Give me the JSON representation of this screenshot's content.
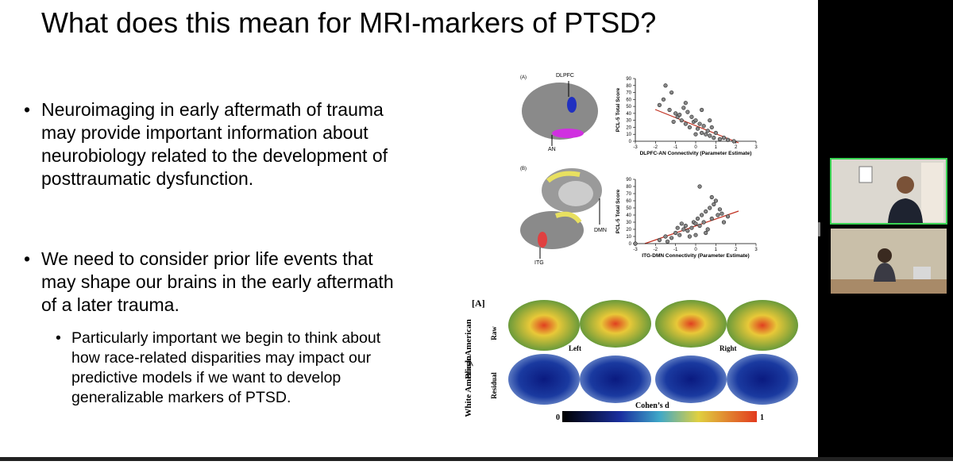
{
  "slide": {
    "title": "What does this mean for MRI-markers of PTSD?",
    "bullets": [
      {
        "lines": [
          "Neuroimaging in early aftermath of trauma",
          "may provide important information about",
          "neurobiology related to the development of",
          "posttraumatic dysfunction."
        ]
      },
      {
        "lines": [
          "We need to consider prior life events that",
          "may shape our brains in the early aftermath",
          "of a later trauma."
        ]
      }
    ],
    "sub_bullet": {
      "lines": [
        "Particularly important we begin to think about",
        "how race-related disparities may impact our",
        "predictive models if we want to develop",
        "generalizable markers of PTSD."
      ]
    },
    "figure_top": {
      "panels": [
        {
          "tag": "(A)",
          "region_labels": [
            "DLPFC",
            "AN"
          ],
          "y_label": "PCL-5 Total Score",
          "x_label": "DLPFC-AN Connectivity (Parameter Estimate)",
          "xlim": [
            -3,
            3
          ],
          "ylim": [
            0,
            90
          ],
          "xticks": [
            -3,
            -2,
            -1,
            0,
            1,
            2,
            3
          ],
          "yticks": [
            0,
            10,
            20,
            30,
            40,
            50,
            60,
            70,
            80,
            90
          ],
          "x": [
            -1.8,
            -1.5,
            -1.3,
            -1.2,
            -1.0,
            -0.9,
            -0.8,
            -0.7,
            -0.6,
            -0.5,
            -0.4,
            -0.3,
            -0.2,
            -0.1,
            0,
            0.1,
            0.2,
            0.3,
            0.4,
            0.5,
            0.6,
            0.7,
            0.8,
            0.9,
            1.0,
            1.2,
            1.4,
            -1.6,
            -0.5,
            0.0,
            0.3,
            0.7,
            -1.1,
            1.6,
            1.9
          ],
          "y": [
            52,
            80,
            45,
            70,
            40,
            35,
            38,
            30,
            48,
            25,
            42,
            20,
            35,
            28,
            30,
            18,
            25,
            12,
            22,
            10,
            15,
            8,
            20,
            5,
            12,
            3,
            5,
            60,
            55,
            10,
            45,
            30,
            28,
            2,
            0
          ]
        },
        {
          "tag": "(B)",
          "region_labels": [
            "DMN",
            "ITG"
          ],
          "y_label": "PCL-5 Total Score",
          "x_label": "ITG-DMN Connectivity (Parameter Estimate)",
          "xlim": [
            -3,
            3
          ],
          "ylim": [
            0,
            90
          ],
          "xticks": [
            -3,
            -2,
            -1,
            0,
            1,
            2,
            3
          ],
          "yticks": [
            0,
            10,
            20,
            30,
            40,
            50,
            60,
            70,
            80,
            90
          ],
          "x": [
            -3,
            -1.8,
            -1.5,
            -1.2,
            -1,
            -0.8,
            -0.6,
            -0.5,
            -0.4,
            -0.2,
            -0.1,
            0,
            0.1,
            0.2,
            0.3,
            0.4,
            0.5,
            0.6,
            0.7,
            0.8,
            0.9,
            1.0,
            1.1,
            1.2,
            1.4,
            -0.9,
            -0.3,
            0.2,
            0.5,
            0.8,
            -1.4,
            0.0,
            1.3,
            1.6,
            -0.7
          ],
          "y": [
            0,
            5,
            10,
            8,
            15,
            12,
            20,
            25,
            18,
            22,
            30,
            28,
            35,
            25,
            40,
            30,
            45,
            20,
            50,
            35,
            55,
            60,
            40,
            48,
            30,
            22,
            10,
            80,
            15,
            65,
            3,
            12,
            42,
            38,
            28
          ]
        }
      ]
    },
    "figure_bottom": {
      "tag": "[A]",
      "group_top": "Black American",
      "comparison": ">",
      "group_bottom": "White American",
      "row_labels": [
        "Raw",
        "Residual"
      ],
      "hemisphere_labels": [
        "Left",
        "Right"
      ],
      "colorbar_label": "Cohen’s d",
      "colorbar_min": "0",
      "colorbar_max": "1"
    }
  }
}
